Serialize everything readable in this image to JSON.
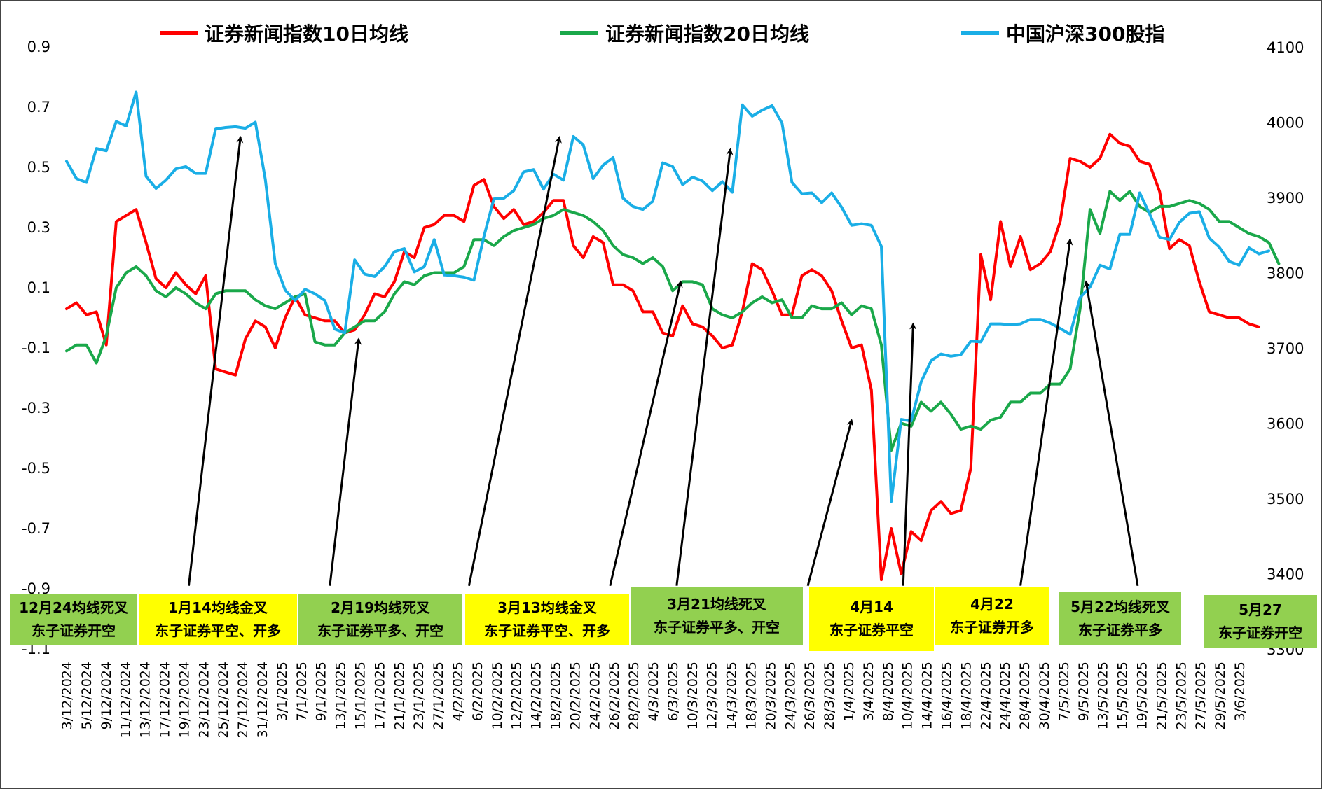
{
  "chart_data": {
    "type": "line",
    "legend": [
      {
        "name": "证券新闻指数10日均线",
        "color": "#ff0000"
      },
      {
        "name": "证券新闻指数20日均线",
        "color": "#1aa84a"
      },
      {
        "name": "中国沪深300股指",
        "color": "#1aaee6"
      }
    ],
    "y_left": {
      "min": -1.1,
      "max": 0.9,
      "ticks": [
        "0.9",
        "0.7",
        "0.5",
        "0.3",
        "0.1",
        "-0.1",
        "-0.3",
        "-0.5",
        "-0.7",
        "-0.9",
        "-1.1"
      ]
    },
    "y_right": {
      "min": 3300,
      "max": 4100,
      "ticks": [
        "4100",
        "4000",
        "3900",
        "3800",
        "3700",
        "3600",
        "3500",
        "3400",
        "3300"
      ]
    },
    "x_tick_labels": [
      "3/12/2024",
      "5/12/2024",
      "9/12/2024",
      "11/12/2024",
      "13/12/2024",
      "17/12/2024",
      "19/12/2024",
      "23/12/2024",
      "25/12/2024",
      "27/12/2024",
      "31/12/2024",
      "3/1/2025",
      "7/1/2025",
      "9/1/2025",
      "13/1/2025",
      "15/1/2025",
      "17/1/2025",
      "21/1/2025",
      "23/1/2025",
      "27/1/2025",
      "4/2/2025",
      "6/2/2025",
      "10/2/2025",
      "12/2/2025",
      "14/2/2025",
      "18/2/2025",
      "20/2/2025",
      "24/2/2025",
      "26/2/2025",
      "28/2/2025",
      "4/3/2025",
      "6/3/2025",
      "10/3/2025",
      "12/3/2025",
      "14/3/2025",
      "18/3/2025",
      "20/3/2025",
      "24/3/2025",
      "26/3/2025",
      "28/3/2025",
      "1/4/2025",
      "3/4/2025",
      "8/4/2025",
      "10/4/2025",
      "14/4/2025",
      "16/4/2025",
      "18/4/2025",
      "22/4/2025",
      "24/4/2025",
      "28/4/2025",
      "30/4/2025",
      "7/5/2025",
      "9/5/2025",
      "13/5/2025",
      "15/5/2025",
      "19/5/2025",
      "21/5/2025",
      "23/5/2025",
      "27/5/2025",
      "29/5/2025",
      "3/6/2025"
    ],
    "series": [
      {
        "name": "证券新闻指数10日均线",
        "axis": "left",
        "color": "#ff0000",
        "values": [
          0.03,
          0.05,
          0.01,
          0.02,
          -0.09,
          0.32,
          0.34,
          0.36,
          0.25,
          0.13,
          0.1,
          0.15,
          0.11,
          0.08,
          0.14,
          -0.17,
          -0.18,
          -0.19,
          -0.07,
          -0.01,
          -0.03,
          -0.1,
          0.0,
          0.07,
          0.01,
          0.0,
          -0.01,
          -0.01,
          -0.05,
          -0.04,
          0.01,
          0.08,
          0.07,
          0.12,
          0.22,
          0.2,
          0.3,
          0.31,
          0.34,
          0.34,
          0.32,
          0.44,
          0.46,
          0.37,
          0.33,
          0.36,
          0.31,
          0.32,
          0.35,
          0.39,
          0.39,
          0.24,
          0.2,
          0.27,
          0.25,
          0.11,
          0.11,
          0.09,
          0.02,
          0.02,
          -0.05,
          -0.06,
          0.04,
          -0.02,
          -0.03,
          -0.06,
          -0.1,
          -0.09,
          0.02,
          0.18,
          0.16,
          0.09,
          0.01,
          0.01,
          0.14,
          0.16,
          0.14,
          0.09,
          -0.01,
          -0.1,
          -0.09,
          -0.24,
          -0.87,
          -0.7,
          -0.85,
          -0.71,
          -0.74,
          -0.64,
          -0.61,
          -0.65,
          -0.64,
          -0.5,
          0.21,
          0.06,
          0.32,
          0.17,
          0.27,
          0.16,
          0.18,
          0.22,
          0.32,
          0.53,
          0.52,
          0.5,
          0.53,
          0.61,
          0.58,
          0.57,
          0.52,
          0.51,
          0.42,
          0.23,
          0.26,
          0.24,
          0.12,
          0.02,
          0.01,
          0.0,
          0.0,
          -0.02,
          -0.03
        ]
      },
      {
        "name": "证券新闻指数20日均线",
        "axis": "left",
        "color": "#1aa84a",
        "values": [
          -0.11,
          -0.09,
          -0.09,
          -0.15,
          -0.06,
          0.1,
          0.15,
          0.17,
          0.14,
          0.09,
          0.07,
          0.1,
          0.08,
          0.05,
          0.03,
          0.08,
          0.09,
          0.09,
          0.09,
          0.06,
          0.04,
          0.03,
          0.05,
          0.07,
          0.08,
          -0.08,
          -0.09,
          -0.09,
          -0.05,
          -0.03,
          -0.01,
          -0.01,
          0.02,
          0.08,
          0.12,
          0.11,
          0.14,
          0.15,
          0.15,
          0.15,
          0.17,
          0.26,
          0.26,
          0.24,
          0.27,
          0.29,
          0.3,
          0.31,
          0.33,
          0.34,
          0.36,
          0.35,
          0.34,
          0.32,
          0.29,
          0.24,
          0.21,
          0.2,
          0.18,
          0.2,
          0.17,
          0.09,
          0.12,
          0.12,
          0.11,
          0.03,
          0.01,
          0.0,
          0.02,
          0.05,
          0.07,
          0.05,
          0.06,
          0.0,
          0.0,
          0.04,
          0.03,
          0.03,
          0.05,
          0.01,
          0.04,
          0.03,
          -0.09,
          -0.44,
          -0.35,
          -0.36,
          -0.28,
          -0.31,
          -0.28,
          -0.32,
          -0.37,
          -0.36,
          -0.37,
          -0.34,
          -0.33,
          -0.28,
          -0.28,
          -0.25,
          -0.25,
          -0.22,
          -0.22,
          -0.17,
          0.03,
          0.36,
          0.28,
          0.42,
          0.39,
          0.42,
          0.37,
          0.35,
          0.37,
          0.37,
          0.38,
          0.39,
          0.38,
          0.36,
          0.32,
          0.32,
          0.3,
          0.28,
          0.27,
          0.25,
          0.18
        ]
      },
      {
        "name": "中国沪深300股指",
        "axis": "right",
        "color": "#1aaee6",
        "values": [
          3948,
          3925,
          3920,
          3965,
          3962,
          4001,
          3995,
          4040,
          3928,
          3912,
          3923,
          3938,
          3941,
          3932,
          3932,
          3991,
          3993,
          3994,
          3992,
          4000,
          3924,
          3812,
          3777,
          3763,
          3778,
          3772,
          3763,
          3725,
          3720,
          3817,
          3798,
          3795,
          3808,
          3828,
          3832,
          3801,
          3808,
          3844,
          3797,
          3796,
          3794,
          3790,
          3848,
          3898,
          3899,
          3909,
          3934,
          3937,
          3911,
          3931,
          3923,
          3981,
          3970,
          3925,
          3943,
          3953,
          3899,
          3888,
          3884,
          3895,
          3946,
          3941,
          3917,
          3927,
          3922,
          3909,
          3921,
          3907,
          4023,
          4008,
          4016,
          4022,
          3999,
          3920,
          3905,
          3906,
          3893,
          3906,
          3887,
          3863,
          3865,
          3863,
          3835,
          3496,
          3605,
          3603,
          3655,
          3683,
          3692,
          3689,
          3691,
          3709,
          3708,
          3732,
          3732,
          3731,
          3732,
          3738,
          3738,
          3733,
          3726,
          3718,
          3767,
          3781,
          3810,
          3805,
          3851,
          3851,
          3906,
          3878,
          3847,
          3844,
          3867,
          3879,
          3881,
          3846,
          3834,
          3815,
          3810,
          3833,
          3825,
          3829
        ]
      }
    ],
    "arrows": [
      {
        "from_x": 12.3,
        "from_y": -0.89,
        "to_x": 17.5,
        "to_y": 0.6
      },
      {
        "from_x": 26.5,
        "from_y": -0.89,
        "to_x": 29.4,
        "to_y": -0.07
      },
      {
        "from_x": 40.5,
        "from_y": -0.89,
        "to_x": 49.6,
        "to_y": 0.6
      },
      {
        "from_x": 54.7,
        "from_y": -0.89,
        "to_x": 61.8,
        "to_y": 0.12
      },
      {
        "from_x": 61.4,
        "from_y": -0.89,
        "to_x": 66.8,
        "to_y": 0.56
      },
      {
        "from_x": 74.6,
        "from_y": -0.89,
        "to_x": 79.0,
        "to_y": -0.34
      },
      {
        "from_x": 84.2,
        "from_y": -0.89,
        "to_x": 85.2,
        "to_y": -0.02
      },
      {
        "from_x": 96.0,
        "from_y": -0.89,
        "to_x": 101.0,
        "to_y": 0.26
      },
      {
        "from_x": 107.8,
        "from_y": -0.89,
        "to_x": 102.6,
        "to_y": 0.12
      }
    ]
  },
  "annotations": [
    {
      "line1": "12月24均线死叉",
      "line2": "东子证券开空",
      "bg": "#92d050"
    },
    {
      "line1": "1月14均线金叉",
      "line2": "东子证券平空、开多",
      "bg": "#ffff00"
    },
    {
      "line1": "2月19均线死叉",
      "line2": "东子证券平多、开空",
      "bg": "#92d050"
    },
    {
      "line1": "3月13均线金叉",
      "line2": "东子证券平空、开多",
      "bg": "#ffff00"
    },
    {
      "line1": "3月21均线死叉",
      "line2": "东子证券平多、开空",
      "bg": "#92d050"
    },
    {
      "line1": "4月14",
      "line2": "东子证券平空",
      "bg": "#ffff00"
    },
    {
      "line1": "4月22",
      "line2": "东子证券开多",
      "bg": "#ffff00"
    },
    {
      "line1": "5月22均线死叉",
      "line2": "东子证券平多",
      "bg": "#92d050"
    },
    {
      "line1": "5月27",
      "line2": "东子证券开空",
      "bg": "#92d050"
    }
  ]
}
